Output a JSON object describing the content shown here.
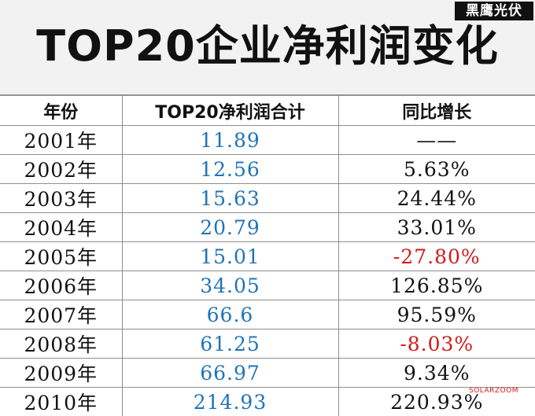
{
  "title": "TOP20企业净利润变化",
  "brand_logo": "黑鹰光伏",
  "watermark": "SOLARZOOM",
  "colors": {
    "value_blue": "#1f73b7",
    "negative_red": "#d11a1a",
    "header_band": "#f2f2f2"
  },
  "table": {
    "headers": [
      "年份",
      "TOP20净利润合计",
      "同比增长"
    ],
    "rows": [
      {
        "year": "2001年",
        "profit": "11.89",
        "growth": "——",
        "negative": false
      },
      {
        "year": "2002年",
        "profit": "12.56",
        "growth": "5.63%",
        "negative": false
      },
      {
        "year": "2003年",
        "profit": "15.63",
        "growth": "24.44%",
        "negative": false
      },
      {
        "year": "2004年",
        "profit": "20.79",
        "growth": "33.01%",
        "negative": false
      },
      {
        "year": "2005年",
        "profit": "15.01",
        "growth": "-27.80%",
        "negative": true
      },
      {
        "year": "2006年",
        "profit": "34.05",
        "growth": "126.85%",
        "negative": false
      },
      {
        "year": "2007年",
        "profit": "66.6",
        "growth": "95.59%",
        "negative": false
      },
      {
        "year": "2008年",
        "profit": "61.25",
        "growth": "-8.03%",
        "negative": true
      },
      {
        "year": "2009年",
        "profit": "66.97",
        "growth": "9.34%",
        "negative": false
      },
      {
        "year": "2010年",
        "profit": "214.93",
        "growth": "220.93%",
        "negative": false
      }
    ]
  }
}
